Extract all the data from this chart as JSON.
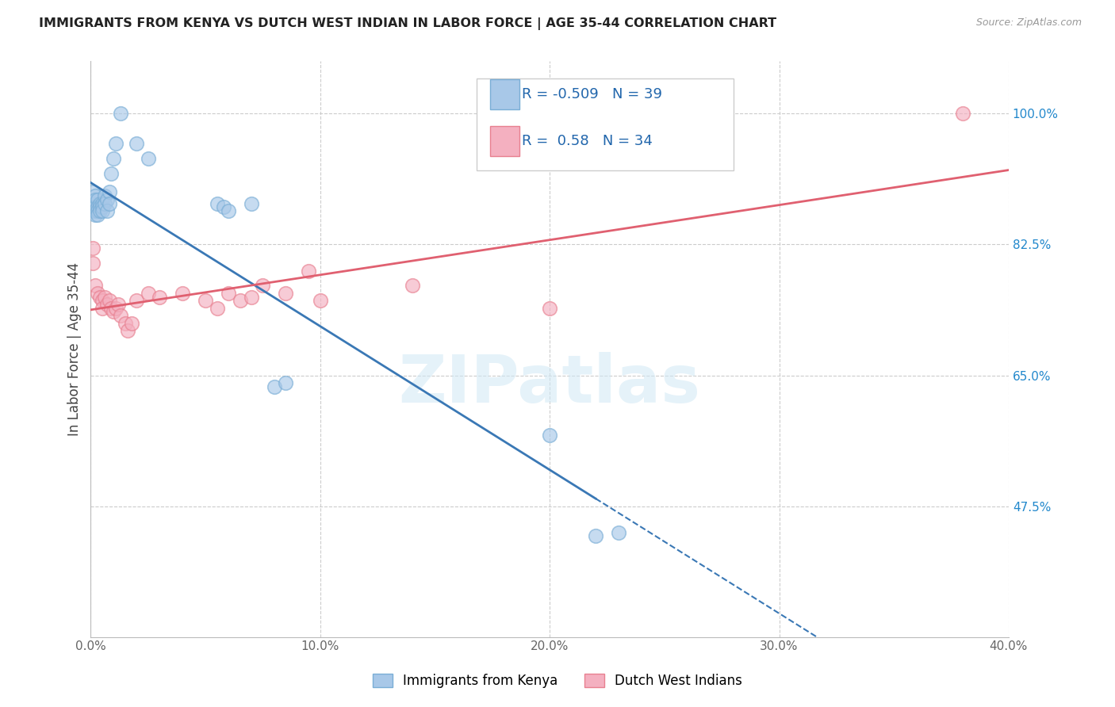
{
  "title": "IMMIGRANTS FROM KENYA VS DUTCH WEST INDIAN IN LABOR FORCE | AGE 35-44 CORRELATION CHART",
  "source": "Source: ZipAtlas.com",
  "ylabel": "In Labor Force | Age 35-44",
  "xlim": [
    0.0,
    0.4
  ],
  "ylim": [
    0.3,
    1.07
  ],
  "xtick_labels": [
    "0.0%",
    "10.0%",
    "20.0%",
    "30.0%",
    "40.0%"
  ],
  "xtick_vals": [
    0.0,
    0.1,
    0.2,
    0.3,
    0.4
  ],
  "ytick_right_labels": [
    "47.5%",
    "65.0%",
    "82.5%",
    "100.0%"
  ],
  "ytick_right_vals": [
    0.475,
    0.65,
    0.825,
    1.0
  ],
  "kenya_R": -0.509,
  "kenya_N": 39,
  "dwi_R": 0.58,
  "dwi_N": 34,
  "kenya_color": "#a8c8e8",
  "dwi_color": "#f4b0c0",
  "kenya_edge_color": "#7aaed6",
  "dwi_edge_color": "#e88090",
  "kenya_line_color": "#3a78b5",
  "dwi_line_color": "#e06070",
  "kenya_x": [
    0.001,
    0.001,
    0.001,
    0.002,
    0.002,
    0.002,
    0.002,
    0.002,
    0.003,
    0.003,
    0.003,
    0.003,
    0.004,
    0.004,
    0.004,
    0.005,
    0.005,
    0.005,
    0.006,
    0.006,
    0.007,
    0.007,
    0.008,
    0.008,
    0.009,
    0.01,
    0.011,
    0.013,
    0.02,
    0.025,
    0.055,
    0.058,
    0.06,
    0.07,
    0.08,
    0.085,
    0.2,
    0.22,
    0.23
  ],
  "kenya_y": [
    0.895,
    0.88,
    0.87,
    0.89,
    0.885,
    0.875,
    0.87,
    0.865,
    0.885,
    0.875,
    0.87,
    0.865,
    0.88,
    0.875,
    0.87,
    0.88,
    0.875,
    0.87,
    0.89,
    0.88,
    0.885,
    0.87,
    0.895,
    0.88,
    0.92,
    0.94,
    0.96,
    1.0,
    0.96,
    0.94,
    0.88,
    0.875,
    0.87,
    0.88,
    0.635,
    0.64,
    0.57,
    0.435,
    0.44
  ],
  "dwi_x": [
    0.001,
    0.001,
    0.002,
    0.003,
    0.004,
    0.005,
    0.005,
    0.006,
    0.007,
    0.008,
    0.009,
    0.01,
    0.011,
    0.012,
    0.013,
    0.015,
    0.016,
    0.018,
    0.02,
    0.025,
    0.03,
    0.04,
    0.05,
    0.055,
    0.06,
    0.065,
    0.07,
    0.075,
    0.085,
    0.095,
    0.1,
    0.14,
    0.2,
    0.38
  ],
  "dwi_y": [
    0.82,
    0.8,
    0.77,
    0.76,
    0.755,
    0.75,
    0.74,
    0.755,
    0.745,
    0.75,
    0.74,
    0.735,
    0.74,
    0.745,
    0.73,
    0.72,
    0.71,
    0.72,
    0.75,
    0.76,
    0.755,
    0.76,
    0.75,
    0.74,
    0.76,
    0.75,
    0.755,
    0.77,
    0.76,
    0.79,
    0.75,
    0.77,
    0.74,
    1.0
  ],
  "watermark": "ZIPatlas",
  "background_color": "#ffffff",
  "grid_color": "#cccccc"
}
